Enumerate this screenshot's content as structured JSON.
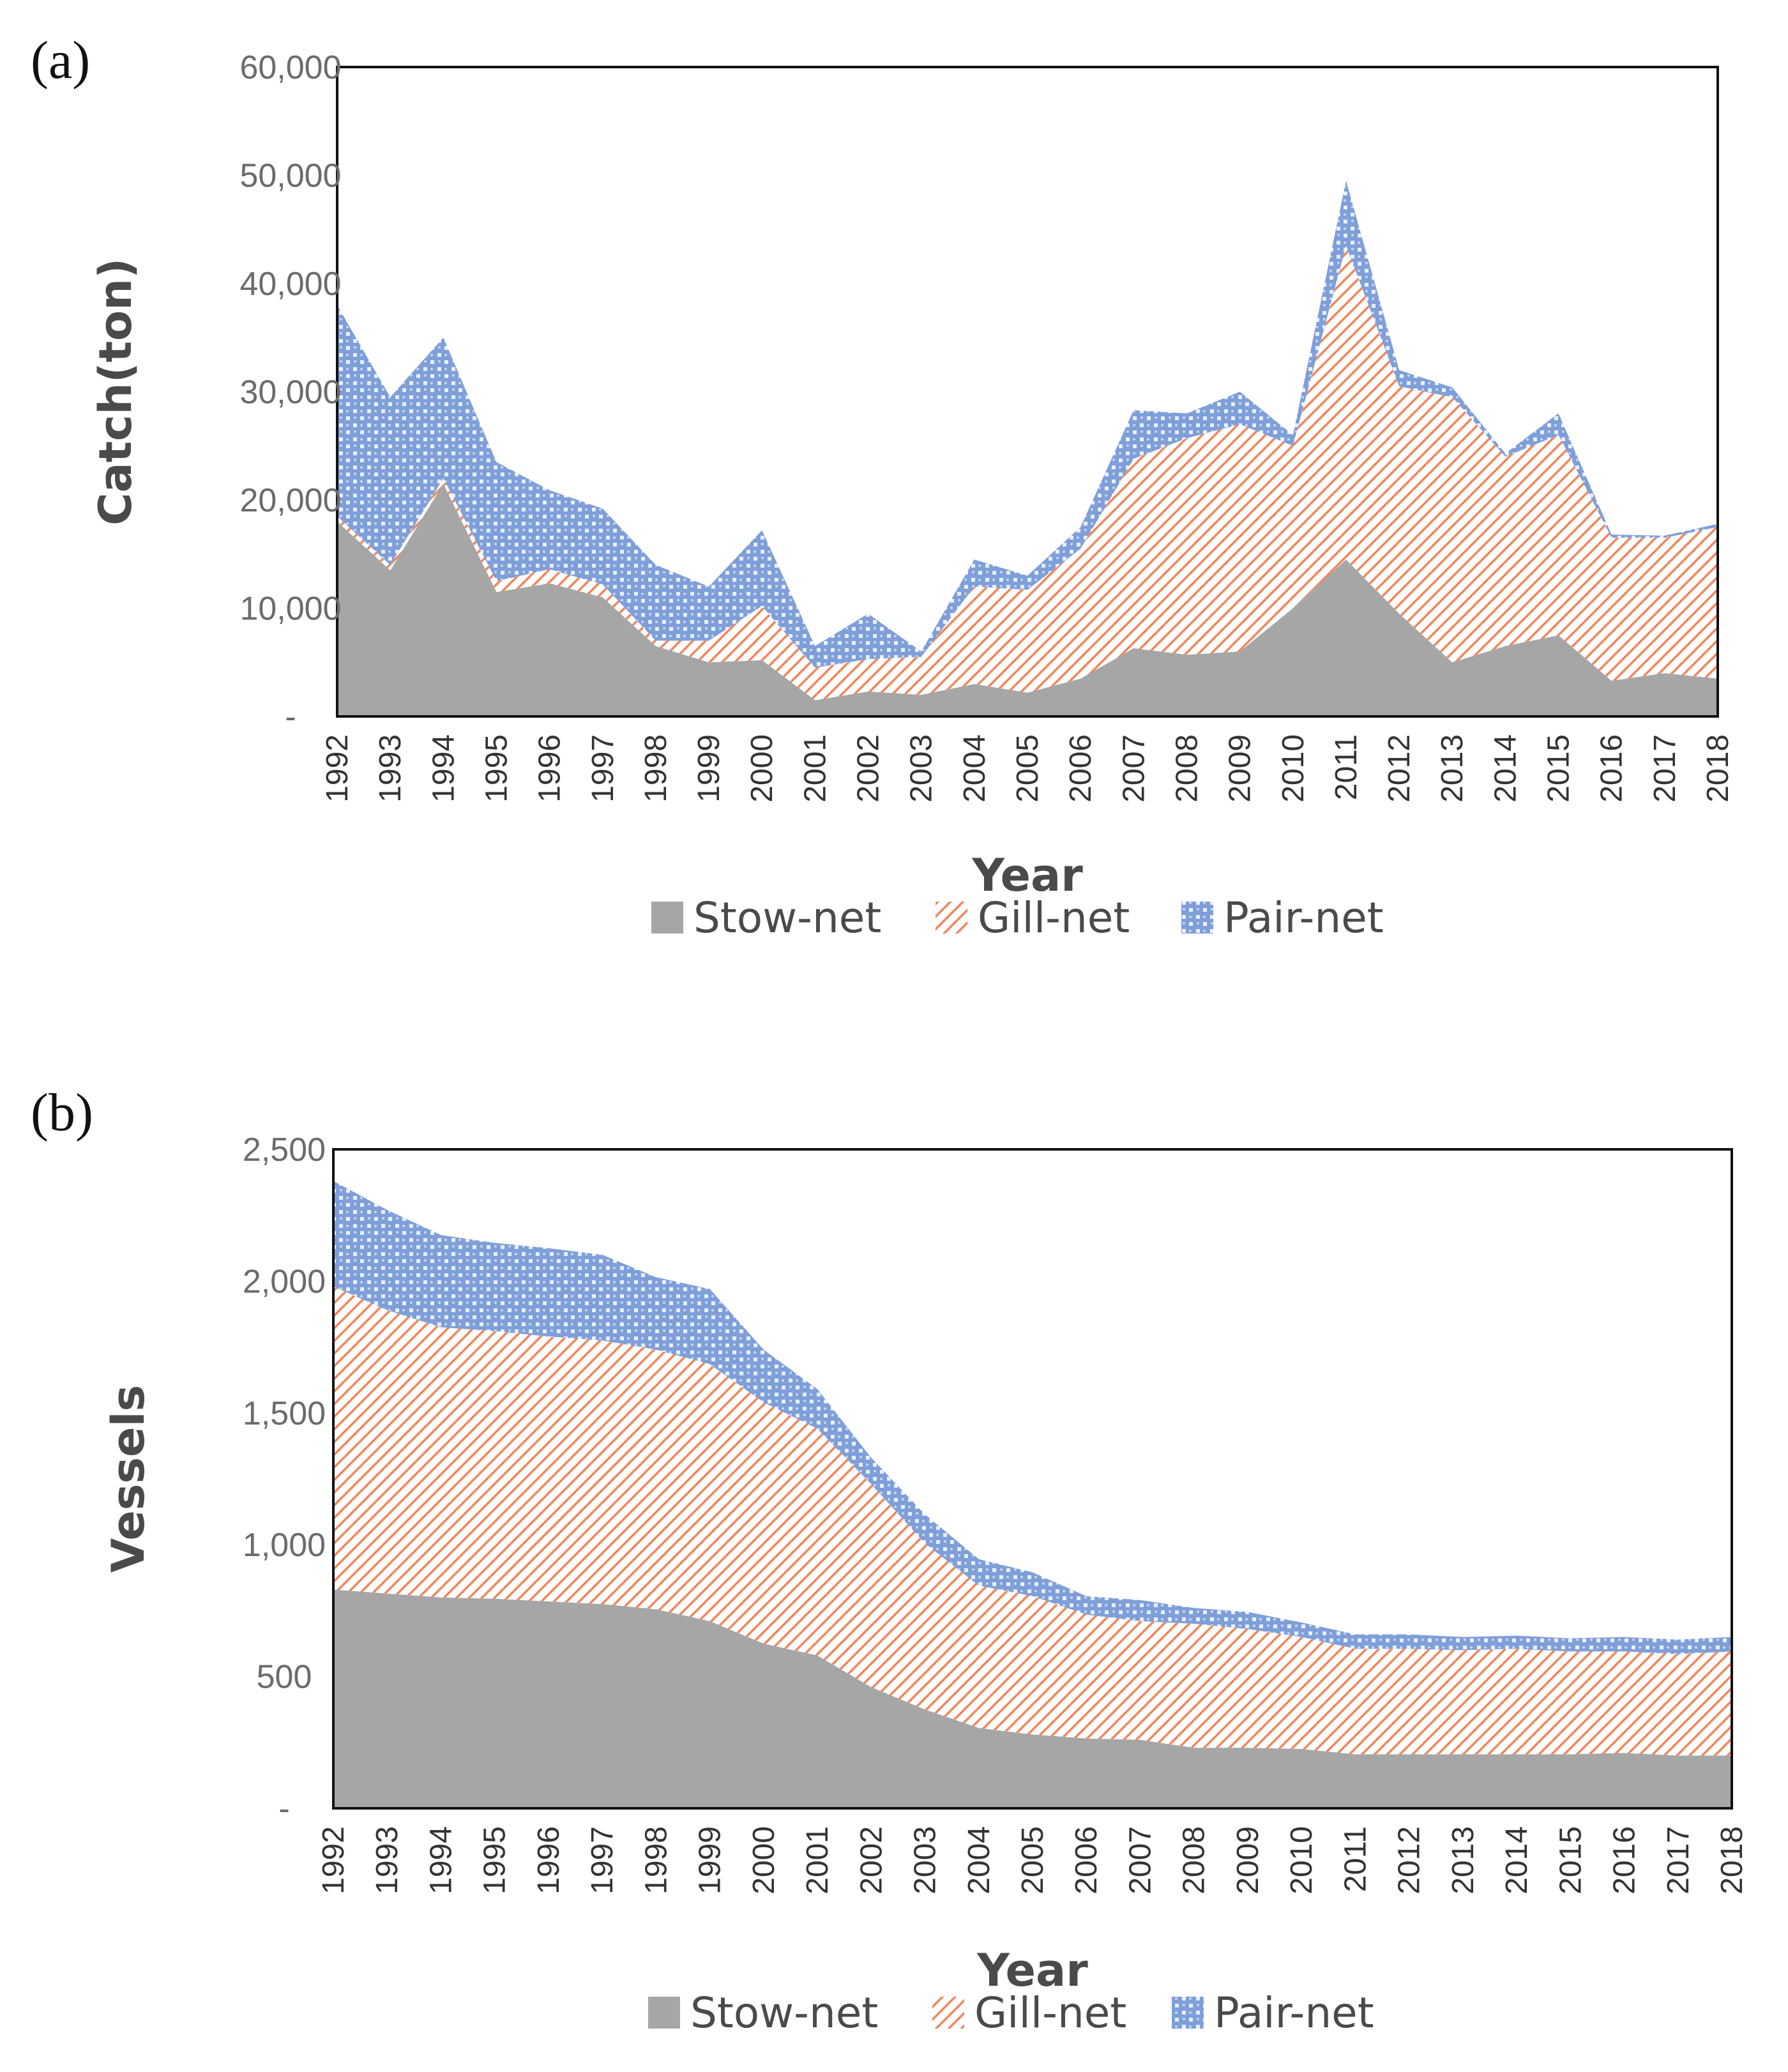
{
  "colors": {
    "stow": "#a6a6a6",
    "gill_line": "#f0845a",
    "pair_bg": "#7f9fd9",
    "pair_dot": "#e8efff",
    "frame": "#111111"
  },
  "chart_data": [
    {
      "panel_label": "(a)",
      "type": "area",
      "stacked": true,
      "title": "",
      "xlabel": "Year",
      "ylabel": "Catch(ton)",
      "ylim": [
        0,
        60000
      ],
      "yticks": [
        0,
        10000,
        20000,
        30000,
        40000,
        50000,
        60000
      ],
      "ytick_labels": [
        "-",
        "10,000",
        "20,000",
        "30,000",
        "40,000",
        "50,000",
        "60,000"
      ],
      "categories": [
        "1992",
        "1993",
        "1994",
        "1995",
        "1996",
        "1997",
        "1998",
        "1999",
        "2000",
        "2001",
        "2002",
        "2003",
        "2004",
        "2005",
        "2006",
        "2007",
        "2008",
        "2009",
        "2010",
        "2011",
        "2012",
        "2013",
        "2014",
        "2015",
        "2016",
        "2017",
        "2018"
      ],
      "series": [
        {
          "name": "Stow-net",
          "values": [
            18000,
            13500,
            21500,
            11500,
            12300,
            11000,
            6500,
            5000,
            5200,
            1500,
            2300,
            2000,
            3000,
            2200,
            3500,
            6300,
            5700,
            6000,
            10000,
            14500,
            9500,
            5000,
            6500,
            7500,
            3300,
            4000,
            3500
          ]
        },
        {
          "name": "Gill-net",
          "values": [
            500,
            500,
            500,
            1000,
            1300,
            1200,
            500,
            2000,
            5000,
            3000,
            3000,
            3500,
            9000,
            9500,
            12000,
            17500,
            20000,
            21000,
            15000,
            29000,
            21000,
            24500,
            17500,
            18500,
            13200,
            12500,
            14000
          ]
        },
        {
          "name": "Pair-net",
          "values": [
            19500,
            15500,
            13000,
            11000,
            7300,
            7000,
            7000,
            5000,
            7000,
            2000,
            4200,
            500,
            2500,
            1300,
            2000,
            4500,
            2300,
            3000,
            1000,
            6000,
            1500,
            900,
            300,
            2000,
            300,
            200,
            300
          ]
        }
      ],
      "legend": [
        "Stow-net",
        "Gill-net",
        "Pair-net"
      ],
      "legend_position": "bottom"
    },
    {
      "panel_label": "(b)",
      "type": "area",
      "stacked": true,
      "title": "",
      "xlabel": "Year",
      "ylabel": "Vessels",
      "ylim": [
        0,
        2500
      ],
      "yticks": [
        0,
        500,
        1000,
        1500,
        2000,
        2500
      ],
      "ytick_labels": [
        "-",
        "500",
        "1,000",
        "1,500",
        "2,000",
        "2,500"
      ],
      "categories": [
        "1992",
        "1993",
        "1994",
        "1995",
        "1996",
        "1997",
        "1998",
        "1999",
        "2000",
        "2001",
        "2002",
        "2003",
        "2004",
        "2005",
        "2006",
        "2007",
        "2008",
        "2009",
        "2010",
        "2011",
        "2012",
        "2013",
        "2014",
        "2015",
        "2016",
        "2017",
        "2018"
      ],
      "series": [
        {
          "name": "Stow-net",
          "values": [
            830,
            815,
            800,
            795,
            785,
            775,
            755,
            710,
            625,
            580,
            460,
            375,
            305,
            280,
            265,
            260,
            230,
            230,
            225,
            205,
            205,
            205,
            205,
            205,
            210,
            200,
            200
          ]
        },
        {
          "name": "Gill-net",
          "values": [
            1150,
            1075,
            1025,
            1015,
            1005,
            1000,
            985,
            975,
            915,
            860,
            770,
            630,
            540,
            525,
            470,
            450,
            470,
            450,
            425,
            400,
            400,
            395,
            400,
            390,
            385,
            385,
            395
          ]
        },
        {
          "name": "Pair-net",
          "values": [
            400,
            380,
            350,
            335,
            335,
            325,
            275,
            285,
            200,
            150,
            100,
            110,
            100,
            90,
            70,
            80,
            60,
            65,
            55,
            55,
            55,
            50,
            50,
            50,
            55,
            55,
            55
          ]
        }
      ],
      "legend": [
        "Stow-net",
        "Gill-net",
        "Pair-net"
      ],
      "legend_position": "bottom"
    }
  ]
}
